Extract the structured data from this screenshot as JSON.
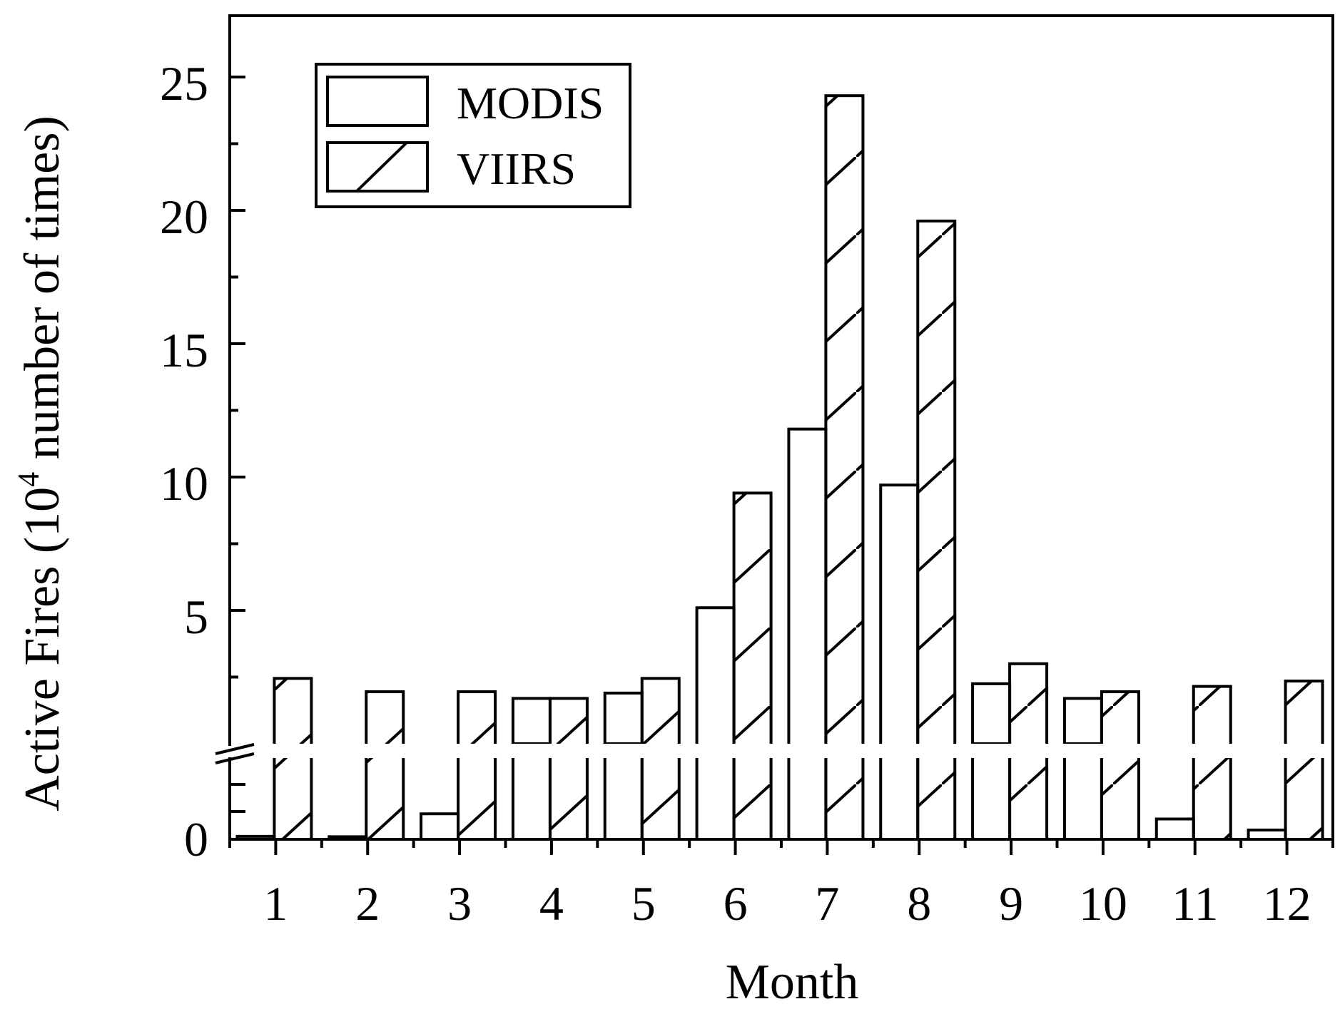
{
  "chart_data": {
    "type": "bar",
    "title": "",
    "xlabel": "Month",
    "ylabel_prefix": "Active Fires (10",
    "ylabel_superscript": "4",
    "ylabel_suffix": " number of times)",
    "categories": [
      "1",
      "2",
      "3",
      "4",
      "5",
      "6",
      "7",
      "8",
      "9",
      "10",
      "11",
      "12"
    ],
    "y_upper_range": [
      0,
      27
    ],
    "y_ticks": [
      "25",
      "20",
      "15",
      "10",
      "5",
      "0"
    ],
    "axis_break": true,
    "series": [
      {
        "name": "MODIS",
        "pattern": "none",
        "values": [
          0.08,
          0.07,
          0.69,
          1.65,
          1.85,
          5.1,
          11.8,
          9.7,
          2.2,
          1.65,
          0.55,
          0.25
        ],
        "upper_panel_clipped": [
          false,
          false,
          false,
          true,
          true,
          false,
          false,
          false,
          true,
          true,
          false,
          false
        ]
      },
      {
        "name": "VIIRS",
        "pattern": "hatch",
        "values": [
          2.15,
          1.65,
          1.65,
          1.4,
          2.15,
          9.4,
          24.3,
          19.6,
          3.0,
          1.65,
          1.85,
          2.05
        ]
      }
    ],
    "legend": {
      "position": "top-left",
      "entries": [
        {
          "label": "MODIS",
          "pattern": "none"
        },
        {
          "label": "VIIRS",
          "pattern": "hatch"
        }
      ]
    },
    "colors": {
      "stroke": "#000000",
      "fill": "#ffffff"
    }
  }
}
